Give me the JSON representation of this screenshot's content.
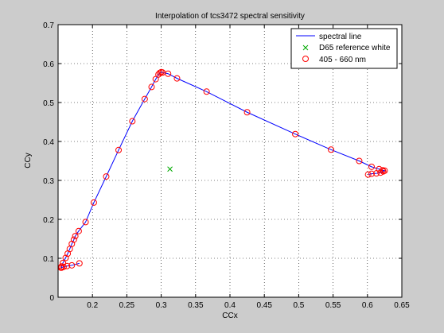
{
  "chart_data": {
    "type": "line",
    "title": "Interpolation of tcs3472 spectral sensitivity",
    "xlabel": "CCx",
    "ylabel": "CCy",
    "xlim": [
      0.15,
      0.65
    ],
    "ylim": [
      0,
      0.7
    ],
    "grid": true,
    "legend_position": "top-right",
    "x_ticks": [
      0.2,
      0.25,
      0.3,
      0.35,
      0.4,
      0.45,
      0.5,
      0.55,
      0.6,
      0.65
    ],
    "x_tick_labels": [
      "0.2",
      "0.25",
      "0.3",
      "0.35",
      "0.4",
      "0.45",
      "0.5",
      "0.55",
      "0.6",
      "0.65"
    ],
    "y_ticks": [
      0,
      0.1,
      0.2,
      0.3,
      0.4,
      0.5,
      0.6,
      0.7
    ],
    "y_tick_labels": [
      "0",
      "0.1",
      "0.2",
      "0.3",
      "0.4",
      "0.5",
      "0.6",
      "0.7"
    ],
    "legend": [
      {
        "label": "spectral line",
        "marker": "line",
        "color": "#0000ff"
      },
      {
        "label": "D65 reference white",
        "marker": "x",
        "color": "#00aa00"
      },
      {
        "label": "405 - 660 nm",
        "marker": "o",
        "color": "#ff0000"
      }
    ],
    "series": [
      {
        "name": "spectral line",
        "color": "#0000ff",
        "style": "line",
        "x": [
          0.181,
          0.17,
          0.163,
          0.158,
          0.155,
          0.154,
          0.155,
          0.157,
          0.161,
          0.164,
          0.167,
          0.17,
          0.173,
          0.175,
          0.18,
          0.19,
          0.202,
          0.22,
          0.238,
          0.258,
          0.276,
          0.286,
          0.292,
          0.296,
          0.298,
          0.3,
          0.302,
          0.31,
          0.323,
          0.366,
          0.425,
          0.495,
          0.547,
          0.588,
          0.606,
          0.617,
          0.622,
          0.625,
          0.623,
          0.619,
          0.613,
          0.606,
          0.601
        ],
        "y": [
          0.087,
          0.082,
          0.08,
          0.078,
          0.076,
          0.076,
          0.079,
          0.088,
          0.101,
          0.112,
          0.124,
          0.137,
          0.148,
          0.157,
          0.17,
          0.193,
          0.243,
          0.31,
          0.378,
          0.452,
          0.509,
          0.54,
          0.56,
          0.572,
          0.576,
          0.578,
          0.577,
          0.574,
          0.562,
          0.528,
          0.475,
          0.419,
          0.379,
          0.35,
          0.335,
          0.329,
          0.326,
          0.325,
          0.323,
          0.32,
          0.318,
          0.317,
          0.315
        ]
      },
      {
        "name": "405 - 660 nm",
        "color": "#ff0000",
        "style": "circle",
        "x": [
          0.181,
          0.17,
          0.163,
          0.158,
          0.155,
          0.154,
          0.155,
          0.157,
          0.161,
          0.164,
          0.167,
          0.17,
          0.173,
          0.175,
          0.18,
          0.19,
          0.202,
          0.22,
          0.238,
          0.258,
          0.276,
          0.286,
          0.292,
          0.296,
          0.298,
          0.3,
          0.302,
          0.31,
          0.323,
          0.366,
          0.425,
          0.495,
          0.547,
          0.588,
          0.606,
          0.617,
          0.622,
          0.625,
          0.623,
          0.619,
          0.613,
          0.606,
          0.601
        ],
        "y": [
          0.087,
          0.082,
          0.08,
          0.078,
          0.076,
          0.076,
          0.079,
          0.088,
          0.101,
          0.112,
          0.124,
          0.137,
          0.148,
          0.157,
          0.17,
          0.193,
          0.243,
          0.31,
          0.378,
          0.452,
          0.509,
          0.54,
          0.56,
          0.572,
          0.576,
          0.578,
          0.577,
          0.574,
          0.562,
          0.528,
          0.475,
          0.419,
          0.379,
          0.35,
          0.335,
          0.329,
          0.326,
          0.325,
          0.323,
          0.32,
          0.318,
          0.317,
          0.315
        ]
      },
      {
        "name": "D65 reference white",
        "color": "#00aa00",
        "style": "x",
        "x": [
          0.3127
        ],
        "y": [
          0.329
        ]
      }
    ]
  }
}
